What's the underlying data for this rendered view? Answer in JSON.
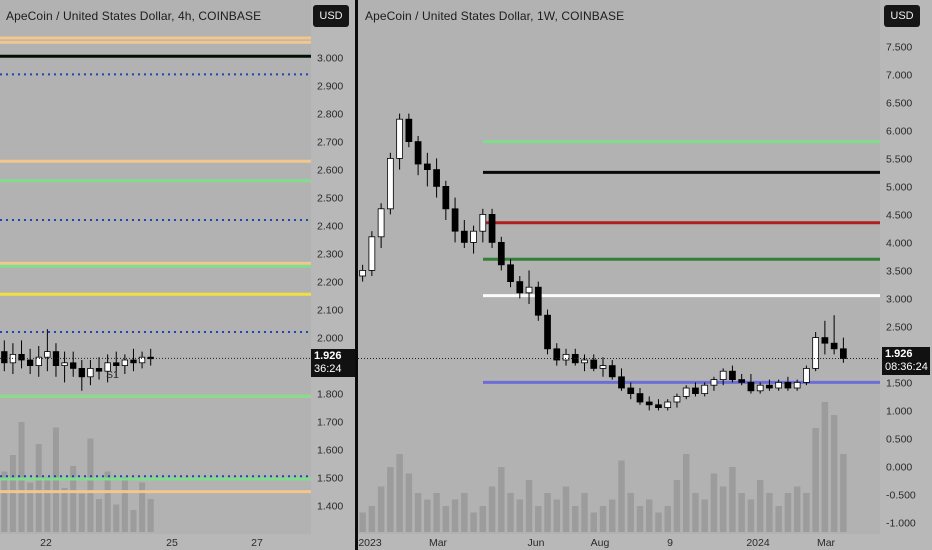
{
  "currency_button": "USD",
  "left_chart": {
    "title": "ApeCoin / United States Dollar, 4h, COINBASE",
    "price_label": "1.926",
    "countdown": "36:24",
    "y_ticks": [
      "3.000",
      "2.900",
      "2.800",
      "2.700",
      "2.600",
      "2.500",
      "2.400",
      "2.300",
      "2.200",
      "2.100",
      "2.000",
      "1.900",
      "1.800",
      "1.700",
      "1.600",
      "1.500",
      "1.400"
    ],
    "x_ticks": [
      "22",
      "25",
      "27"
    ],
    "pivot_label": "S1"
  },
  "right_chart": {
    "title": "ApeCoin / United States Dollar, 1W, COINBASE",
    "price_label": "1.926",
    "countdown": "08:36:24",
    "y_ticks": [
      "7.500",
      "7.000",
      "6.500",
      "6.000",
      "5.500",
      "5.000",
      "4.500",
      "4.000",
      "3.500",
      "3.000",
      "2.500",
      "2.000",
      "1.500",
      "1.000",
      "0.500",
      "0.000",
      "-0.500",
      "-1.000"
    ],
    "x_ticks": [
      "2023",
      "Mar",
      "Jun",
      "Aug",
      "9",
      "2024",
      "Mar"
    ]
  },
  "colors": {
    "background": "#b2b2b2",
    "up_candle": "#ffffff",
    "down_candle": "#000000",
    "ema_yellow": "#f5e23a",
    "ma_blue": "#1f1fd0",
    "ma_cyan": "#3fd0d0",
    "trend_red": "#b01818",
    "bollinger_purple": "#8a3df0",
    "pivot_orange": "#f5c98a",
    "pivot_green": "#7fe08a",
    "pivot_blue_dots": "#1a3fb0",
    "volume_bar": "#8a8a8a"
  },
  "chart_data": [
    {
      "type": "candlestick",
      "title": "ApeCoin / United States Dollar, 4h, COINBASE",
      "ylim": [
        1.32,
        3.12
      ],
      "xlabel": "",
      "ylabel": "",
      "x_tick_labels": [
        "22",
        "25",
        "27"
      ],
      "last_price": 1.926,
      "horizontal_levels": [
        {
          "value": 3.07,
          "color": "pivot_orange"
        },
        {
          "value": 3.055,
          "color": "pivot_orange"
        },
        {
          "value": 3.005,
          "color": "pivot_green"
        },
        {
          "value": 3.005,
          "color": "#000000"
        },
        {
          "value": 2.94,
          "color": "pivot_blue_dots"
        },
        {
          "value": 2.63,
          "color": "pivot_orange"
        },
        {
          "value": 2.56,
          "color": "pivot_green"
        },
        {
          "value": 2.42,
          "color": "pivot_blue_dots"
        },
        {
          "value": 2.265,
          "color": "pivot_orange"
        },
        {
          "value": 2.255,
          "color": "pivot_green"
        },
        {
          "value": 2.155,
          "color": "ema_yellow"
        },
        {
          "value": 2.02,
          "color": "pivot_blue_dots"
        },
        {
          "value": 1.79,
          "color": "pivot_orange"
        },
        {
          "value": 1.79,
          "color": "pivot_green"
        },
        {
          "value": 1.505,
          "color": "pivot_blue_dots"
        },
        {
          "value": 1.495,
          "color": "pivot_green"
        },
        {
          "value": 1.45,
          "color": "pivot_orange"
        }
      ],
      "candles": [
        {
          "o": 1.95,
          "h": 1.99,
          "l": 1.88,
          "c": 1.91
        },
        {
          "o": 1.91,
          "h": 1.98,
          "l": 1.87,
          "c": 1.94
        },
        {
          "o": 1.94,
          "h": 1.99,
          "l": 1.89,
          "c": 1.92
        },
        {
          "o": 1.92,
          "h": 1.96,
          "l": 1.87,
          "c": 1.9
        },
        {
          "o": 1.9,
          "h": 1.97,
          "l": 1.86,
          "c": 1.93
        },
        {
          "o": 1.93,
          "h": 2.03,
          "l": 1.88,
          "c": 1.95
        },
        {
          "o": 1.95,
          "h": 1.98,
          "l": 1.86,
          "c": 1.9
        },
        {
          "o": 1.9,
          "h": 1.95,
          "l": 1.84,
          "c": 1.91
        },
        {
          "o": 1.91,
          "h": 1.95,
          "l": 1.86,
          "c": 1.89
        },
        {
          "o": 1.89,
          "h": 1.92,
          "l": 1.81,
          "c": 1.86
        },
        {
          "o": 1.86,
          "h": 1.92,
          "l": 1.83,
          "c": 1.89
        },
        {
          "o": 1.89,
          "h": 1.93,
          "l": 1.85,
          "c": 1.88
        },
        {
          "o": 1.88,
          "h": 1.94,
          "l": 1.84,
          "c": 1.91
        },
        {
          "o": 1.91,
          "h": 1.95,
          "l": 1.86,
          "c": 1.9
        },
        {
          "o": 1.9,
          "h": 1.94,
          "l": 1.87,
          "c": 1.92
        },
        {
          "o": 1.92,
          "h": 1.96,
          "l": 1.88,
          "c": 1.91
        },
        {
          "o": 1.91,
          "h": 1.95,
          "l": 1.89,
          "c": 1.93
        },
        {
          "o": 1.93,
          "h": 1.96,
          "l": 1.9,
          "c": 1.926
        }
      ],
      "volume": [
        0.55,
        0.7,
        1.0,
        0.45,
        0.8,
        0.5,
        0.95,
        0.4,
        0.6,
        0.35,
        0.85,
        0.3,
        0.55,
        0.25,
        0.5,
        0.2,
        0.45,
        0.3
      ]
    },
    {
      "type": "candlestick",
      "title": "ApeCoin / United States Dollar, 1W, COINBASE",
      "ylim": [
        -1.1,
        7.9
      ],
      "xlabel": "",
      "ylabel": "",
      "x_tick_labels": [
        "2023",
        "Mar",
        "Jun",
        "Aug",
        "9",
        "2024",
        "Mar"
      ],
      "last_price": 1.926,
      "horizontal_levels": [
        {
          "value": 5.8,
          "color": "pivot_green"
        },
        {
          "value": 5.25,
          "color": "#000000"
        },
        {
          "value": 4.35,
          "color": "trend_red"
        },
        {
          "value": 3.7,
          "color": "#2e7d32"
        },
        {
          "value": 3.05,
          "color": "#ffffff"
        },
        {
          "value": 1.5,
          "color": "#6a6ad8"
        }
      ],
      "candles": [
        {
          "o": 3.4,
          "h": 3.6,
          "l": 3.3,
          "c": 3.5
        },
        {
          "o": 3.5,
          "h": 4.2,
          "l": 3.4,
          "c": 4.1
        },
        {
          "o": 4.1,
          "h": 4.7,
          "l": 3.9,
          "c": 4.6
        },
        {
          "o": 4.6,
          "h": 5.6,
          "l": 4.5,
          "c": 5.5
        },
        {
          "o": 5.5,
          "h": 6.3,
          "l": 5.3,
          "c": 6.2
        },
        {
          "o": 6.2,
          "h": 6.3,
          "l": 5.7,
          "c": 5.8
        },
        {
          "o": 5.8,
          "h": 5.9,
          "l": 5.2,
          "c": 5.4
        },
        {
          "o": 5.4,
          "h": 5.6,
          "l": 5.0,
          "c": 5.3
        },
        {
          "o": 5.3,
          "h": 5.5,
          "l": 4.8,
          "c": 5.0
        },
        {
          "o": 5.0,
          "h": 5.1,
          "l": 4.4,
          "c": 4.6
        },
        {
          "o": 4.6,
          "h": 4.8,
          "l": 4.0,
          "c": 4.2
        },
        {
          "o": 4.2,
          "h": 4.4,
          "l": 3.9,
          "c": 4.0
        },
        {
          "o": 4.0,
          "h": 4.3,
          "l": 3.8,
          "c": 4.2
        },
        {
          "o": 4.2,
          "h": 4.6,
          "l": 4.0,
          "c": 4.5
        },
        {
          "o": 4.5,
          "h": 4.6,
          "l": 3.9,
          "c": 4.0
        },
        {
          "o": 4.0,
          "h": 4.1,
          "l": 3.5,
          "c": 3.6
        },
        {
          "o": 3.6,
          "h": 3.7,
          "l": 3.2,
          "c": 3.3
        },
        {
          "o": 3.3,
          "h": 3.4,
          "l": 3.0,
          "c": 3.1
        },
        {
          "o": 3.1,
          "h": 3.5,
          "l": 2.9,
          "c": 3.2
        },
        {
          "o": 3.2,
          "h": 3.3,
          "l": 2.6,
          "c": 2.7
        },
        {
          "o": 2.7,
          "h": 2.8,
          "l": 2.0,
          "c": 2.1
        },
        {
          "o": 2.1,
          "h": 2.2,
          "l": 1.8,
          "c": 1.9
        },
        {
          "o": 1.9,
          "h": 2.1,
          "l": 1.8,
          "c": 2.0
        },
        {
          "o": 2.0,
          "h": 2.1,
          "l": 1.8,
          "c": 1.85
        },
        {
          "o": 1.85,
          "h": 2.0,
          "l": 1.7,
          "c": 1.9
        },
        {
          "o": 1.9,
          "h": 2.0,
          "l": 1.7,
          "c": 1.75
        },
        {
          "o": 1.75,
          "h": 1.95,
          "l": 1.6,
          "c": 1.8
        },
        {
          "o": 1.8,
          "h": 1.9,
          "l": 1.55,
          "c": 1.6
        },
        {
          "o": 1.6,
          "h": 1.75,
          "l": 1.35,
          "c": 1.4
        },
        {
          "o": 1.4,
          "h": 1.5,
          "l": 1.2,
          "c": 1.3
        },
        {
          "o": 1.3,
          "h": 1.4,
          "l": 1.1,
          "c": 1.15
        },
        {
          "o": 1.15,
          "h": 1.25,
          "l": 1.0,
          "c": 1.1
        },
        {
          "o": 1.1,
          "h": 1.2,
          "l": 1.0,
          "c": 1.05
        },
        {
          "o": 1.05,
          "h": 1.2,
          "l": 1.0,
          "c": 1.15
        },
        {
          "o": 1.15,
          "h": 1.3,
          "l": 1.05,
          "c": 1.25
        },
        {
          "o": 1.25,
          "h": 1.45,
          "l": 1.2,
          "c": 1.4
        },
        {
          "o": 1.4,
          "h": 1.5,
          "l": 1.25,
          "c": 1.3
        },
        {
          "o": 1.3,
          "h": 1.5,
          "l": 1.25,
          "c": 1.45
        },
        {
          "o": 1.45,
          "h": 1.6,
          "l": 1.35,
          "c": 1.55
        },
        {
          "o": 1.55,
          "h": 1.75,
          "l": 1.45,
          "c": 1.7
        },
        {
          "o": 1.7,
          "h": 1.8,
          "l": 1.5,
          "c": 1.55
        },
        {
          "o": 1.55,
          "h": 1.65,
          "l": 1.45,
          "c": 1.5
        },
        {
          "o": 1.5,
          "h": 1.65,
          "l": 1.3,
          "c": 1.35
        },
        {
          "o": 1.35,
          "h": 1.5,
          "l": 1.3,
          "c": 1.45
        },
        {
          "o": 1.45,
          "h": 1.55,
          "l": 1.35,
          "c": 1.4
        },
        {
          "o": 1.4,
          "h": 1.55,
          "l": 1.35,
          "c": 1.5
        },
        {
          "o": 1.5,
          "h": 1.6,
          "l": 1.35,
          "c": 1.4
        },
        {
          "o": 1.4,
          "h": 1.55,
          "l": 1.35,
          "c": 1.5
        },
        {
          "o": 1.5,
          "h": 1.8,
          "l": 1.45,
          "c": 1.75
        },
        {
          "o": 1.75,
          "h": 2.4,
          "l": 1.7,
          "c": 2.3
        },
        {
          "o": 2.3,
          "h": 2.6,
          "l": 2.0,
          "c": 2.2
        },
        {
          "o": 2.2,
          "h": 2.7,
          "l": 2.0,
          "c": 2.1
        },
        {
          "o": 2.1,
          "h": 2.3,
          "l": 1.85,
          "c": 1.926
        }
      ],
      "volume": [
        0.15,
        0.2,
        0.35,
        0.5,
        0.6,
        0.45,
        0.3,
        0.25,
        0.3,
        0.2,
        0.25,
        0.3,
        0.15,
        0.2,
        0.35,
        0.5,
        0.3,
        0.25,
        0.4,
        0.2,
        0.3,
        0.25,
        0.35,
        0.2,
        0.3,
        0.15,
        0.2,
        0.25,
        0.55,
        0.3,
        0.2,
        0.25,
        0.15,
        0.2,
        0.4,
        0.6,
        0.3,
        0.25,
        0.45,
        0.35,
        0.5,
        0.3,
        0.25,
        0.4,
        0.3,
        0.2,
        0.3,
        0.35,
        0.3,
        0.8,
        1.0,
        0.9,
        0.6
      ]
    }
  ]
}
